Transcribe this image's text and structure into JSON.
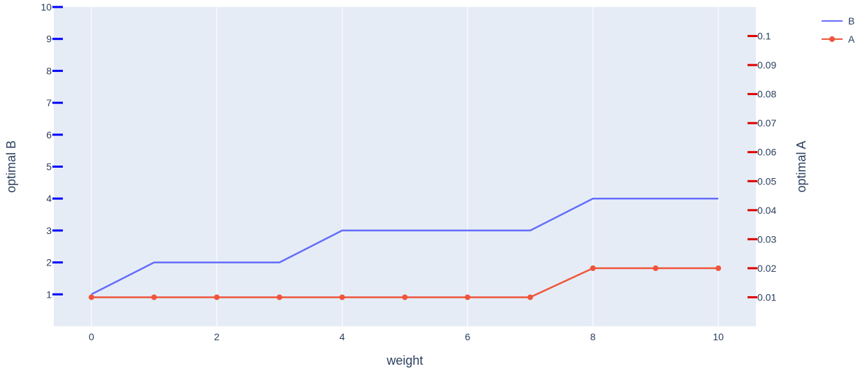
{
  "chart_data": {
    "type": "line",
    "x": [
      0,
      1,
      2,
      3,
      4,
      5,
      6,
      7,
      8,
      9,
      10
    ],
    "xlabel": "weight",
    "x_ticks": [
      0,
      2,
      4,
      6,
      8,
      10
    ],
    "xlim": [
      -0.6,
      10.6
    ],
    "series": [
      {
        "name": "B",
        "axis": "left",
        "mode": "lines",
        "color": "#636efa",
        "values": [
          1,
          2,
          2,
          2,
          3,
          3,
          3,
          3,
          4,
          4,
          4
        ]
      },
      {
        "name": "A",
        "axis": "right",
        "mode": "lines+markers",
        "color": "#ef553b",
        "values": [
          0.01,
          0.01,
          0.01,
          0.01,
          0.01,
          0.01,
          0.01,
          0.01,
          0.02,
          0.02,
          0.02
        ]
      }
    ],
    "y_left": {
      "label": "optimal B",
      "range": [
        0,
        10
      ],
      "ticks": [
        1,
        2,
        3,
        4,
        5,
        6,
        7,
        8,
        9,
        10
      ],
      "tick_color": "#0000ff"
    },
    "y_right": {
      "label": "optimal A",
      "range": [
        0,
        0.11
      ],
      "ticks": [
        0.01,
        0.02,
        0.03,
        0.04,
        0.05,
        0.06,
        0.07,
        0.08,
        0.09,
        0.1
      ],
      "tick_labels": [
        "0.01",
        "0.02",
        "0.03",
        "0.04",
        "0.05",
        "0.06",
        "0.07",
        "0.08",
        "0.09",
        "0.1"
      ],
      "tick_color": "#dd0000"
    },
    "grid": {
      "x": true,
      "y": false
    },
    "plot_bg": "#e5ecf6",
    "grid_color": "#ffffff",
    "text_color": "#2a3f5f",
    "legend": {
      "position": "top-right",
      "items": [
        "B",
        "A"
      ]
    }
  }
}
